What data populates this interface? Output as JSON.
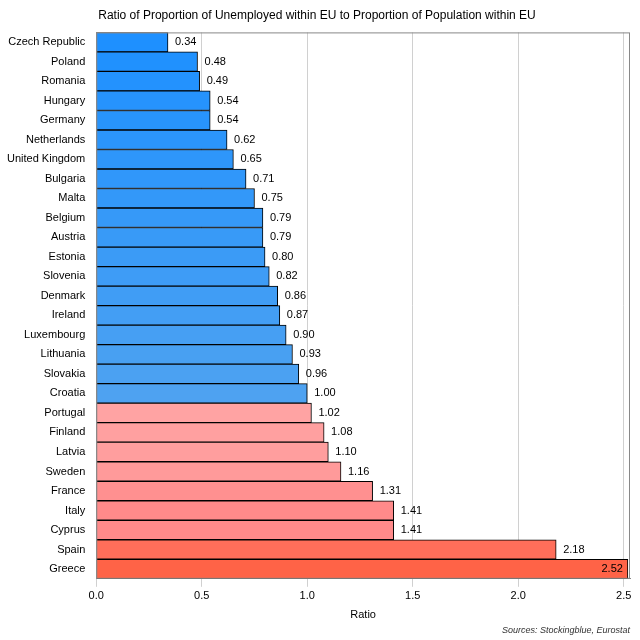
{
  "chart_data": {
    "type": "bar",
    "orientation": "horizontal",
    "title": "Ratio of Proportion of Unemployed within EU to Proportion of Population within EU",
    "x_label": "Ratio",
    "source": "Sources: Stockingblue, Eurostat",
    "categories": [
      "Czech Republic",
      "Poland",
      "Romania",
      "Hungary",
      "Germany",
      "Netherlands",
      "United Kingdom",
      "Bulgaria",
      "Malta",
      "Belgium",
      "Austria",
      "Estonia",
      "Slovenia",
      "Denmark",
      "Ireland",
      "Luxembourg",
      "Lithuania",
      "Slovakia",
      "Croatia",
      "Portugal",
      "Finland",
      "Latvia",
      "Sweden",
      "France",
      "Italy",
      "Cyprus",
      "Spain",
      "Greece"
    ],
    "values": [
      0.34,
      0.48,
      0.49,
      0.54,
      0.54,
      0.62,
      0.65,
      0.71,
      0.75,
      0.79,
      0.79,
      0.8,
      0.82,
      0.86,
      0.87,
      0.9,
      0.93,
      0.96,
      1,
      1.02,
      1.08,
      1.1,
      1.16,
      1.31,
      1.41,
      1.41,
      2.18,
      2.52
    ],
    "value_labels": [
      "0.34",
      "0.48",
      "0.49",
      "0.54",
      "0.54",
      "0.62",
      "0.65",
      "0.71",
      "0.75",
      "0.79",
      "0.79",
      "0.80",
      "0.82",
      "0.86",
      "0.87",
      "0.90",
      "0.93",
      "0.96",
      "1.00",
      "1.02",
      "1.08",
      "1.10",
      "1.16",
      "1.31",
      "1.41",
      "1.41",
      "2.18",
      "2.52"
    ],
    "colors": [
      "#1e90ff",
      "#2091fe",
      "#2392fe",
      "#2693fd",
      "#2894fc",
      "#2b95fb",
      "#2e96fa",
      "#3097fa",
      "#3398f9",
      "#3699f8",
      "#389af7",
      "#3b9bf6",
      "#3e9cf6",
      "#409df5",
      "#439ef4",
      "#469ff3",
      "#48a0f2",
      "#4ba1f2",
      "#4ea2f1",
      "#ffa3a3",
      "#ffa0a0",
      "#ff9e9e",
      "#ff9a9a",
      "#ff9090",
      "#ff8a8a",
      "#ff8a8a",
      "#ff6e5a",
      "#ff6347"
    ],
    "xlim": [
      0,
      2.53
    ],
    "xticks": [
      {
        "value": 0,
        "label": "0.0"
      },
      0.5,
      {
        "value": 1,
        "label": "1.0"
      },
      1.5,
      {
        "value": 2,
        "label": "2.0"
      },
      2.5
    ],
    "grid": true,
    "data_labels": true
  }
}
